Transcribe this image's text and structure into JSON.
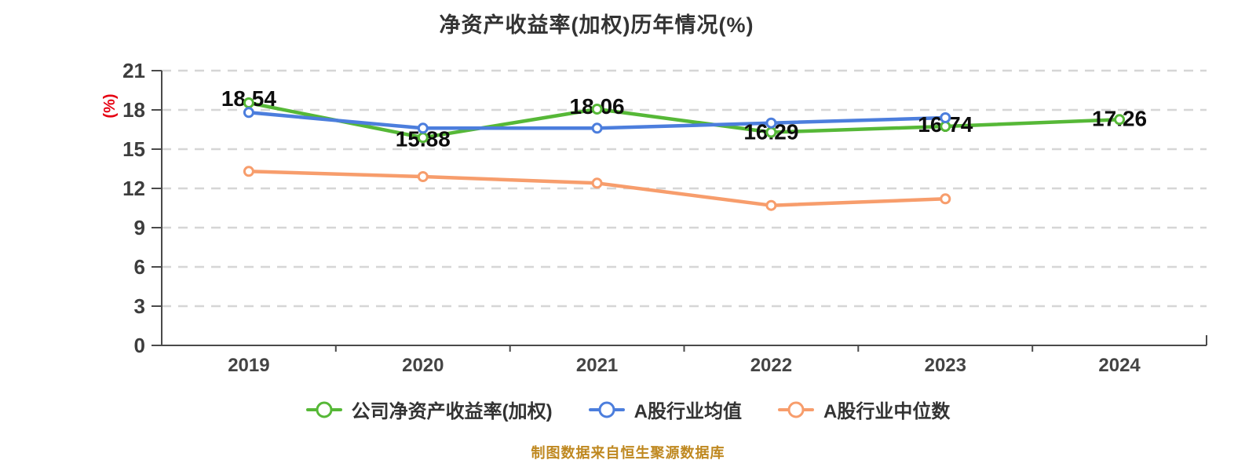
{
  "title": "净资产收益率(加权)历年情况(%)",
  "y_axis_name": "(%)",
  "footer": "制图数据来自恒生聚源数据库",
  "colors": {
    "company_line": "#56b837",
    "industry_mean_line": "#4c7edd",
    "industry_median_line": "#f79d6c",
    "axis": "#4a4a4a",
    "gridline": "#d6d6d6",
    "value_label": "#0d0d0d",
    "y_axis_name": "#e60012",
    "footer": "#bf8820"
  },
  "chart_data": {
    "type": "line",
    "title": "净资产收益率(加权)历年情况(%)",
    "xlabel": "",
    "ylabel": "(%)",
    "categories": [
      "2019",
      "2020",
      "2021",
      "2022",
      "2023",
      "2024"
    ],
    "ylim": [
      0,
      21
    ],
    "y_ticks": [
      0,
      3,
      6,
      9,
      12,
      15,
      18,
      21
    ],
    "grid": "horizontal-dashed",
    "legend_position": "bottom",
    "series": [
      {
        "name": "公司净资产收益率(加权)",
        "color": "#56b837",
        "values": [
          18.54,
          15.88,
          18.06,
          16.29,
          16.74,
          17.26
        ],
        "labels": [
          "18.54",
          "15.88",
          "18.06",
          "16.29",
          "16.74",
          "17.26"
        ]
      },
      {
        "name": "A股行业均值",
        "color": "#4c7edd",
        "values": [
          17.8,
          16.6,
          16.6,
          17.0,
          17.4,
          null
        ]
      },
      {
        "name": "A股行业中位数",
        "color": "#f79d6c",
        "values": [
          13.3,
          12.9,
          12.4,
          10.7,
          11.2,
          null
        ]
      }
    ]
  }
}
